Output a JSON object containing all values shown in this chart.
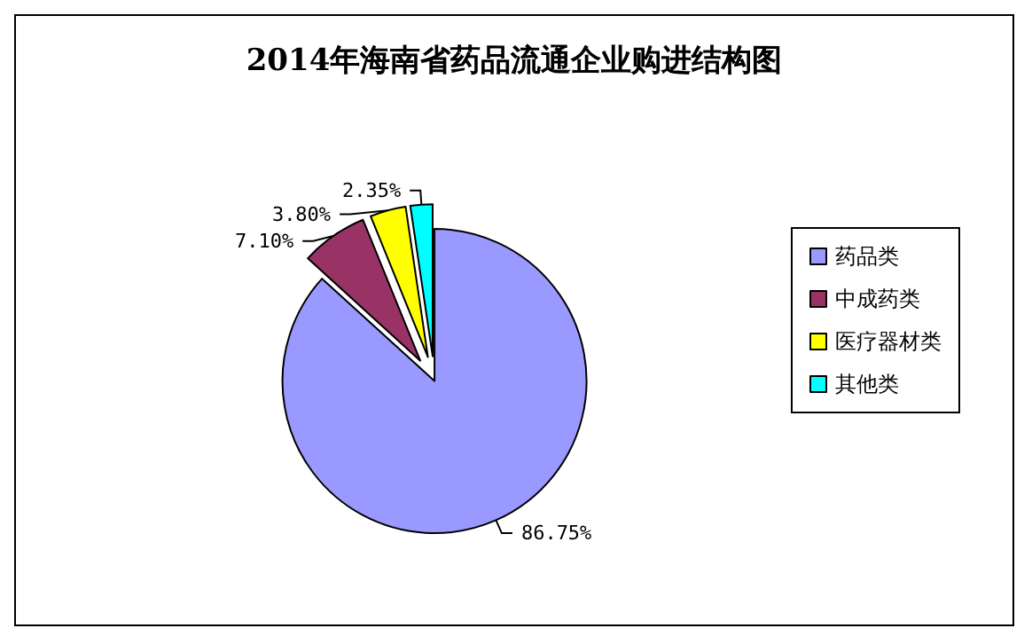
{
  "chart_data": {
    "type": "pie",
    "title": "2014年海南省药品流通企业购进结构图",
    "categories": [
      "药品类",
      "中成药类",
      "医疗器材类",
      "其他类"
    ],
    "values": [
      86.75,
      7.1,
      3.8,
      2.35
    ],
    "value_labels": [
      "86.75%",
      "7.10%",
      "3.80%",
      "2.35%"
    ],
    "colors": [
      "#9999ff",
      "#993366",
      "#ffff00",
      "#00ffff"
    ],
    "legend": "right"
  }
}
